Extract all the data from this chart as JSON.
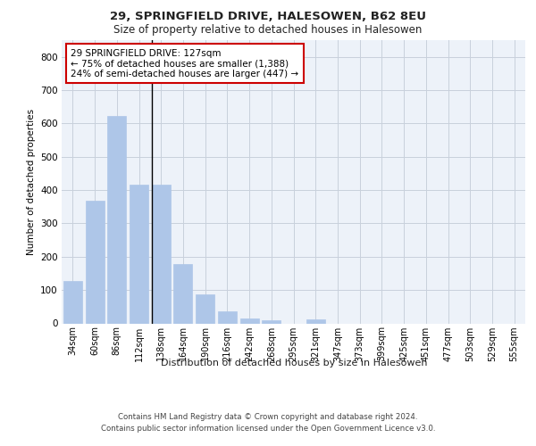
{
  "title_line1": "29, SPRINGFIELD DRIVE, HALESOWEN, B62 8EU",
  "title_line2": "Size of property relative to detached houses in Halesowen",
  "xlabel": "Distribution of detached houses by size in Halesowen",
  "ylabel": "Number of detached properties",
  "bar_labels": [
    "34sqm",
    "60sqm",
    "86sqm",
    "112sqm",
    "138sqm",
    "164sqm",
    "190sqm",
    "216sqm",
    "242sqm",
    "268sqm",
    "295sqm",
    "321sqm",
    "347sqm",
    "373sqm",
    "399sqm",
    "425sqm",
    "451sqm",
    "477sqm",
    "503sqm",
    "529sqm",
    "555sqm"
  ],
  "bar_values": [
    128,
    368,
    623,
    415,
    415,
    178,
    88,
    35,
    15,
    10,
    0,
    12,
    0,
    0,
    0,
    0,
    0,
    0,
    0,
    0,
    0
  ],
  "bar_color": "#aec6e8",
  "bar_edge_color": "#aec6e8",
  "vline_color": "#000000",
  "ylim": [
    0,
    850
  ],
  "yticks": [
    0,
    100,
    200,
    300,
    400,
    500,
    600,
    700,
    800
  ],
  "grid_color": "#c8d0dc",
  "bg_color": "#edf2f9",
  "annotation_text": "29 SPRINGFIELD DRIVE: 127sqm\n← 75% of detached houses are smaller (1,388)\n24% of semi-detached houses are larger (447) →",
  "annotation_box_color": "#ffffff",
  "annotation_box_edge": "#cc0000",
  "footer_line1": "Contains HM Land Registry data © Crown copyright and database right 2024.",
  "footer_line2": "Contains public sector information licensed under the Open Government Licence v3.0."
}
